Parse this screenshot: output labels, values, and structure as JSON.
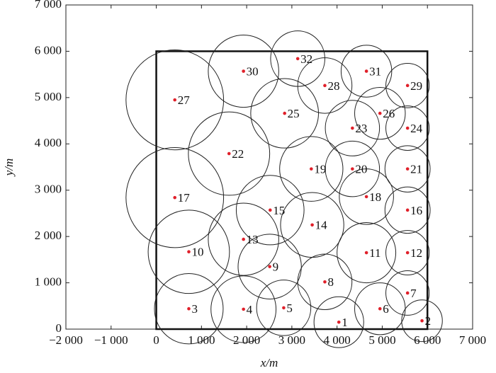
{
  "chart_data": {
    "type": "scatter",
    "xlabel": "x/m",
    "ylabel": "y/m",
    "xlim": [
      -2000,
      7000
    ],
    "ylim": [
      0,
      7000
    ],
    "xticks": [
      {
        "value": -2000,
        "label": "−2 000"
      },
      {
        "value": -1000,
        "label": "−1 000"
      },
      0,
      {
        "value": 1000,
        "label": "1 000"
      },
      {
        "value": 2000,
        "label": "2 000"
      },
      {
        "value": 3000,
        "label": "3 000"
      },
      {
        "value": 4000,
        "label": "4 000"
      },
      {
        "value": 5000,
        "label": "5 000"
      },
      {
        "value": 6000,
        "label": "6 000"
      },
      {
        "value": 7000,
        "label": "7 000"
      }
    ],
    "yticks": [
      0,
      {
        "value": 1000,
        "label": "1 000"
      },
      {
        "value": 2000,
        "label": "2 000"
      },
      {
        "value": 3000,
        "label": "3 000"
      },
      {
        "value": 4000,
        "label": "4 000"
      },
      {
        "value": 5000,
        "label": "5 000"
      },
      {
        "value": 6000,
        "label": "6 000"
      },
      {
        "value": 7000,
        "label": "7 000"
      }
    ],
    "boundary": {
      "xlim": [
        0,
        6000
      ],
      "ylim": [
        0,
        6000
      ]
    },
    "point_color": "#e0202a",
    "circle_color": "#222222",
    "point_labels": [
      "1",
      "2",
      "3",
      "4",
      "5",
      "6",
      "7",
      "8",
      "9",
      "10",
      "11",
      "12",
      "13",
      "14",
      "15",
      "16",
      "17",
      "18",
      "19",
      "20",
      "21",
      "22",
      "23",
      "24",
      "25",
      "26",
      "27",
      "28",
      "29",
      "30",
      "31",
      "32"
    ],
    "x": [
      4040,
      5880,
      720,
      1930,
      2820,
      4950,
      5560,
      3730,
      2510,
      720,
      4650,
      5560,
      1930,
      3450,
      2520,
      5560,
      410,
      4650,
      3430,
      4340,
      5560,
      1610,
      4340,
      5560,
      2840,
      4950,
      410,
      3730,
      5560,
      1930,
      4650,
      3130
    ],
    "values": [
      150,
      180,
      440,
      430,
      460,
      440,
      780,
      1020,
      1350,
      1670,
      1650,
      1650,
      1940,
      2250,
      2570,
      2570,
      2840,
      2860,
      3460,
      3460,
      3460,
      3790,
      4340,
      4340,
      4660,
      4660,
      4950,
      5260,
      5260,
      5570,
      5570,
      5840
    ],
    "sizes": [
      550,
      450,
      760,
      720,
      600,
      560,
      480,
      600,
      700,
      900,
      650,
      480,
      780,
      700,
      750,
      500,
      1080,
      600,
      700,
      600,
      500,
      900,
      600,
      480,
      750,
      560,
      1080,
      600,
      480,
      780,
      560,
      600
    ]
  }
}
